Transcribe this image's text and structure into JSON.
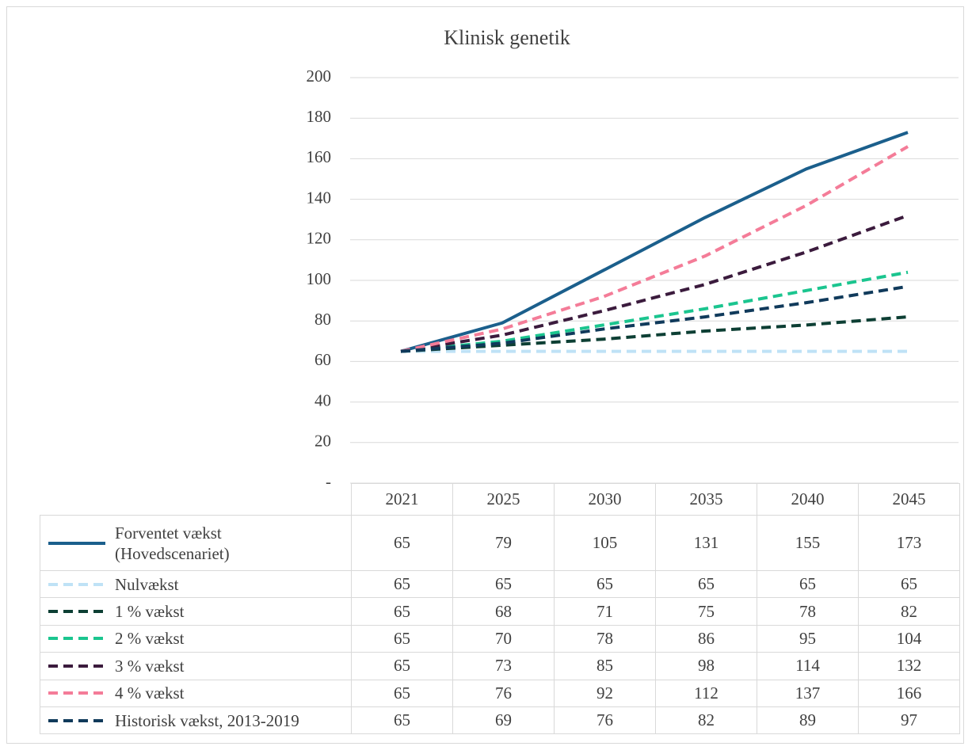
{
  "chart_data": {
    "type": "line",
    "title": "Klinisk genetik",
    "categories": [
      "2021",
      "2025",
      "2030",
      "2035",
      "2040",
      "2045"
    ],
    "ylim": [
      0,
      200
    ],
    "yticks": [
      {
        "value": 0,
        "label": "-"
      },
      20,
      40,
      60,
      80,
      100,
      120,
      140,
      160,
      180,
      200
    ],
    "grid": true,
    "series": [
      {
        "name": "Forventet vækst (Hovedscenariet)",
        "color": "#1b5f8c",
        "line_style": "solid",
        "values": [
          65,
          79,
          105,
          131,
          155,
          173
        ]
      },
      {
        "name": "Nulvækst",
        "color": "#bfe2f6",
        "line_style": "dashed",
        "values": [
          65,
          65,
          65,
          65,
          65,
          65
        ]
      },
      {
        "name": "1 % vækst",
        "color": "#0d3f34",
        "line_style": "dashed",
        "values": [
          65,
          68,
          71,
          75,
          78,
          82
        ]
      },
      {
        "name": "2 % vækst",
        "color": "#1bc58f",
        "line_style": "dashed",
        "values": [
          65,
          70,
          78,
          86,
          95,
          104
        ]
      },
      {
        "name": "3 % vækst",
        "color": "#3b1b3d",
        "line_style": "dashed",
        "values": [
          65,
          73,
          85,
          98,
          114,
          132
        ]
      },
      {
        "name": "4 % vækst",
        "color": "#f47c98",
        "line_style": "dashed",
        "values": [
          65,
          76,
          92,
          112,
          137,
          166
        ]
      },
      {
        "name": "Historisk vækst, 2013-2019",
        "color": "#103a5b",
        "line_style": "dashed",
        "values": [
          65,
          69,
          76,
          82,
          89,
          97
        ]
      }
    ]
  }
}
